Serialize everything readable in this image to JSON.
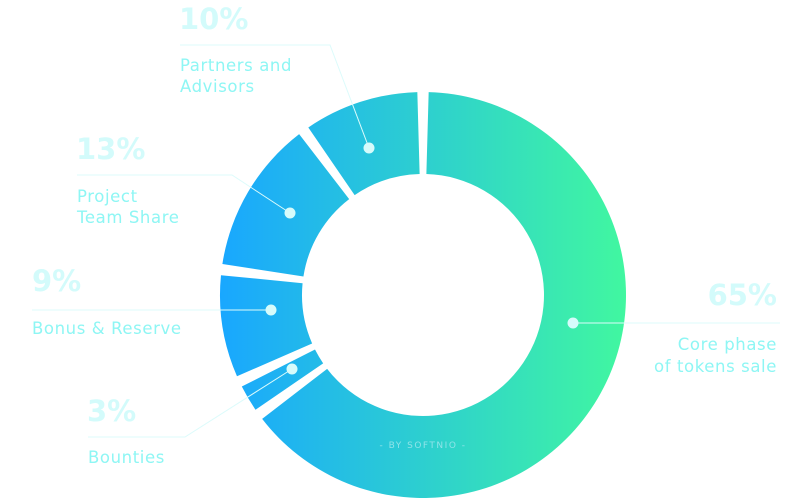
{
  "chart_data": {
    "type": "pie",
    "variant": "donut",
    "watermark": "- BY SOFTNIO -",
    "colors": {
      "gradient_start": "#19a7ff",
      "gradient_end": "#41f7a0",
      "percent_text": "#d3fbfb",
      "label_text": "#8ef6f4"
    },
    "slices": [
      {
        "label_lines": [
          "Core phase",
          "of tokens sale"
        ],
        "value": 65,
        "percent_label": "65%"
      },
      {
        "label_lines": [
          "Bounties"
        ],
        "value": 3,
        "percent_label": "3%"
      },
      {
        "label_lines": [
          "Bonus & Reserve"
        ],
        "value": 9,
        "percent_label": "9%"
      },
      {
        "label_lines": [
          "Project",
          "Team Share"
        ],
        "value": 13,
        "percent_label": "13%"
      },
      {
        "label_lines": [
          "Partners and",
          "Advisors"
        ],
        "value": 10,
        "percent_label": "10%"
      }
    ]
  }
}
